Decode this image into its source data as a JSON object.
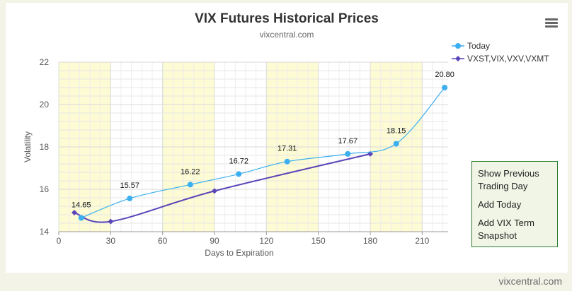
{
  "chart_data": {
    "type": "line",
    "title": "VIX Futures Historical Prices",
    "subtitle": "vixcentral.com",
    "xlabel": "Days to Expiration",
    "ylabel": "Volatility",
    "xlim": [
      0,
      225
    ],
    "ylim": [
      14,
      22
    ],
    "xticks": [
      0,
      30,
      60,
      90,
      120,
      150,
      180,
      210
    ],
    "yticks": [
      14,
      16,
      18,
      20,
      22
    ],
    "bands": [
      [
        0,
        30
      ],
      [
        60,
        90
      ],
      [
        120,
        150
      ],
      [
        180,
        210
      ]
    ],
    "grid": true,
    "legend_position": "top-right",
    "series": [
      {
        "name": "Today",
        "color": "#3bafef",
        "marker": "circle",
        "labels": true,
        "x": [
          13,
          41,
          76,
          104,
          132,
          167,
          195,
          223
        ],
        "y": [
          14.65,
          15.57,
          16.22,
          16.72,
          17.31,
          17.67,
          18.15,
          20.8
        ]
      },
      {
        "name": "VXST,VIX,VXV,VXMT",
        "color": "#5b45b8",
        "marker": "diamond",
        "labels": false,
        "x": [
          9,
          30,
          90,
          180
        ],
        "y": [
          14.9,
          14.48,
          15.92,
          17.67
        ]
      }
    ]
  },
  "buttons": {
    "show_previous": "Show Previous Trading Day",
    "add_today": "Add Today",
    "add_vix_term": "Add VIX Term Snapshot"
  },
  "footer": {
    "credit": "vixcentral.com"
  }
}
